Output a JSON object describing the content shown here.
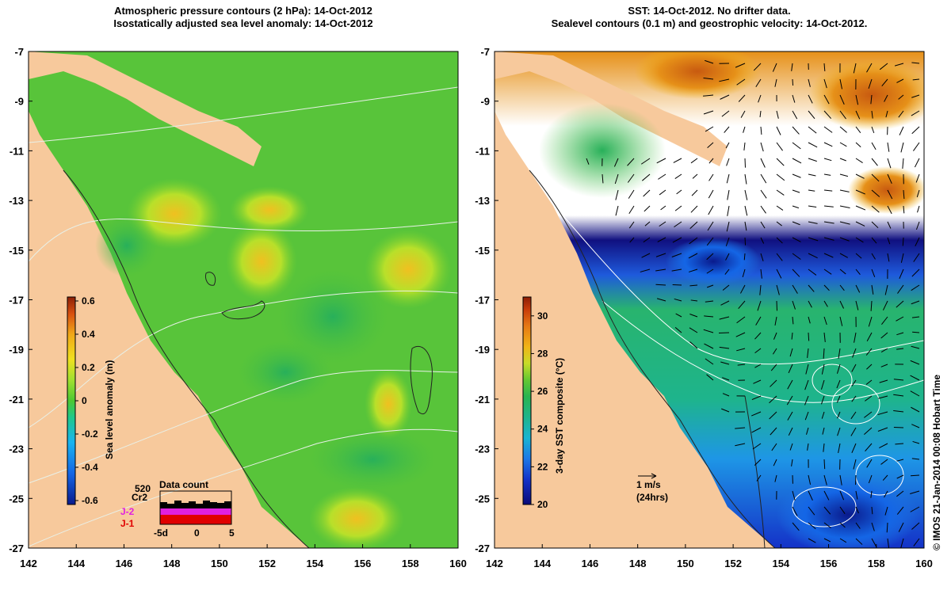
{
  "left_panel": {
    "title_line1": "Atmospheric pressure contours (2 hPa): 14-Oct-2012",
    "title_line2": "Isostatically adjusted sea level anomaly: 14-Oct-2012",
    "colorbar_label": "Sea level anomaly (m)",
    "colorbar_ticks": [
      "0.6",
      "0.4",
      "0.2",
      "0",
      "-0.2",
      "-0.4",
      "-0.6"
    ],
    "colors": [
      "#0a1a8c",
      "#1466e6",
      "#18b4f0",
      "#1ec88a",
      "#4cc832",
      "#a0e030",
      "#f0e020",
      "#f0a818",
      "#d85010",
      "#8c2006"
    ],
    "inset": {
      "title": "Data count",
      "labels": [
        "520",
        "Cr2",
        "J-2",
        "J-1"
      ],
      "label_colors": [
        "#000000",
        "#000000",
        "#e020e0",
        "#e00000"
      ],
      "xticks": [
        "-5d",
        "0",
        "5"
      ]
    }
  },
  "right_panel": {
    "title_line1": "SST: 14-Oct-2012. No drifter data.",
    "title_line2": "Sealevel contours (0.1 m) and geostrophic velocity: 14-Oct-2012.",
    "colorbar_label": "3-day SST composite (°C)",
    "colorbar_ticks": [
      "30",
      "28",
      "26",
      "24",
      "22",
      "20"
    ],
    "colors": [
      "#0a0a78",
      "#1432c8",
      "#1e78e6",
      "#18b4d2",
      "#1eb48c",
      "#28b450",
      "#64c832",
      "#c8dc28",
      "#f0b418",
      "#e67814",
      "#c83c0a",
      "#8c1e06"
    ],
    "scale_label": "1 m/s",
    "scale_sub": "(24hrs)"
  },
  "axes": {
    "x_ticks": [
      "142",
      "144",
      "146",
      "148",
      "150",
      "152",
      "154",
      "156",
      "158",
      "160"
    ],
    "y_ticks": [
      "-7",
      "-9",
      "-11",
      "-13",
      "-15",
      "-17",
      "-19",
      "-21",
      "-23",
      "-25",
      "-27"
    ],
    "lon_range": [
      142,
      160
    ],
    "lat_range": [
      -27,
      -7
    ]
  },
  "credit": "© IMOS 21-Jan-2014 00:08 Hobart Time",
  "land_color": "#f7c99c"
}
